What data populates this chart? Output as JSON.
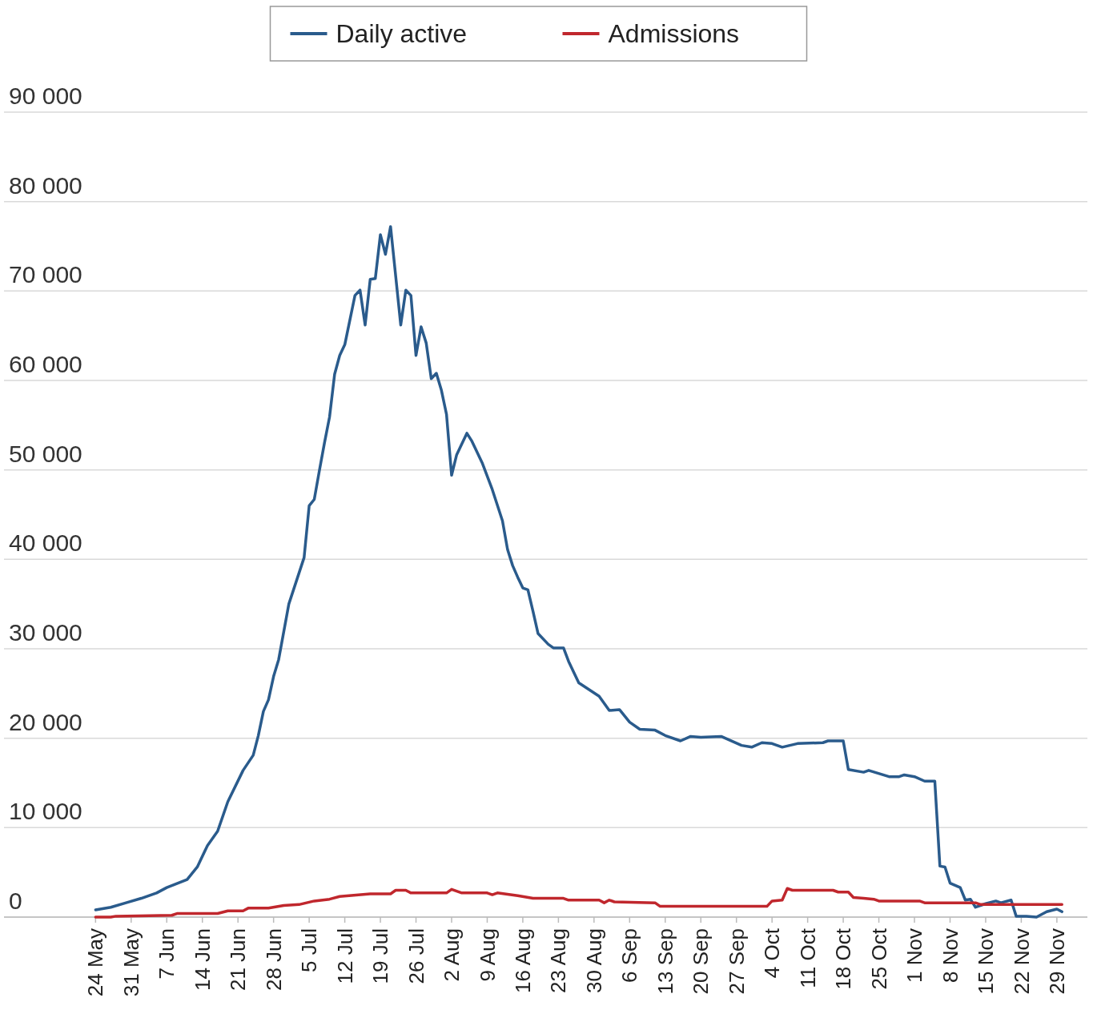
{
  "chart_data": {
    "type": "line",
    "legend": "top",
    "grid": "y",
    "line_style": "solid",
    "xlim": [
      "--05-06",
      "--12-05"
    ],
    "xticks": [
      {
        "value": "--05-24",
        "label": "24 May"
      },
      {
        "value": "--05-31",
        "label": "31 May"
      },
      {
        "value": "--06-07",
        "label": "7 Jun"
      },
      {
        "value": "--06-14",
        "label": "14 Jun"
      },
      {
        "value": "--06-21",
        "label": "21 Jun"
      },
      {
        "value": "--06-28",
        "label": "28 Jun"
      },
      {
        "value": "--07-05",
        "label": "5 Jul"
      },
      {
        "value": "--07-12",
        "label": "12 Jul"
      },
      {
        "value": "--07-19",
        "label": "19 Jul"
      },
      {
        "value": "--07-26",
        "label": "26 Jul"
      },
      {
        "value": "--08-02",
        "label": "2 Aug"
      },
      {
        "value": "--08-09",
        "label": "9 Aug"
      },
      {
        "value": "--08-16",
        "label": "16 Aug"
      },
      {
        "value": "--08-23",
        "label": "23 Aug"
      },
      {
        "value": "--08-30",
        "label": "30 Aug"
      },
      {
        "value": "--09-06",
        "label": "6 Sep"
      },
      {
        "value": "--09-13",
        "label": "13 Sep"
      },
      {
        "value": "--09-20",
        "label": "20 Sep"
      },
      {
        "value": "--09-27",
        "label": "27 Sep"
      },
      {
        "value": "--10-04",
        "label": "4 Oct"
      },
      {
        "value": "--10-11",
        "label": "11 Oct"
      },
      {
        "value": "--10-18",
        "label": "18 Oct"
      },
      {
        "value": "--10-25",
        "label": "25 Oct"
      },
      {
        "value": "--11-01",
        "label": "1 Nov"
      },
      {
        "value": "--11-08",
        "label": "8 Nov"
      },
      {
        "value": "--11-15",
        "label": "15 Nov"
      },
      {
        "value": "--11-22",
        "label": "22 Nov"
      },
      {
        "value": "--11-29",
        "label": "29 Nov"
      }
    ],
    "ylim": [
      0,
      90000
    ],
    "yticks": [
      0,
      {
        "value": 10000,
        "label": "10 000"
      },
      {
        "value": 20000,
        "label": "20 000"
      },
      {
        "value": 30000,
        "label": "30 000"
      },
      {
        "value": 40000,
        "label": "40 000"
      },
      {
        "value": 50000,
        "label": "50 000"
      },
      {
        "value": 60000,
        "label": "60 000"
      },
      {
        "value": 70000,
        "label": "70 000"
      },
      {
        "value": 80000,
        "label": "80 000"
      },
      {
        "value": 90000,
        "label": "90 000"
      }
    ],
    "series": [
      {
        "name": "Daily active",
        "color": "#2a5b8c",
        "x": [
          "--05-24",
          "--05-27",
          "--05-30",
          "--06-02",
          "--06-05",
          "--06-07",
          "--06-11",
          "--06-13",
          "--06-15",
          "--06-17",
          "--06-19",
          "--06-22",
          "--06-24",
          "--06-25",
          "--06-26",
          "--06-27",
          "--06-28",
          "--06-29",
          "--07-01",
          "--07-04",
          "--07-05",
          "--07-06",
          "--07-07",
          "--07-08",
          "--07-09",
          "--07-10",
          "--07-11",
          "--07-12",
          "--07-14",
          "--07-15",
          "--07-16",
          "--07-17",
          "--07-18",
          "--07-19",
          "--07-20",
          "--07-21",
          "--07-23",
          "--07-24",
          "--07-25",
          "--07-26",
          "--07-27",
          "--07-28",
          "--07-29",
          "--07-30",
          "--07-31",
          "--08-01",
          "--08-02",
          "--08-03",
          "--08-05",
          "--08-06",
          "--08-08",
          "--08-10",
          "--08-12",
          "--08-13",
          "--08-14",
          "--08-15",
          "--08-16",
          "--08-17",
          "--08-18",
          "--08-19",
          "--08-21",
          "--08-22",
          "--08-24",
          "--08-25",
          "--08-27",
          "--08-31",
          "--09-02",
          "--09-04",
          "--09-06",
          "--09-08",
          "--09-11",
          "--09-13",
          "--09-16",
          "--09-18",
          "--09-20",
          "--09-24",
          "--09-28",
          "--09-30",
          "--10-02",
          "--10-04",
          "--10-06",
          "--10-09",
          "--10-14",
          "--10-15",
          "--10-18",
          "--10-19",
          "--10-22",
          "--10-23",
          "--10-27",
          "--10-29",
          "--10-30",
          "--11-01",
          "--11-03",
          "--11-05",
          "--11-06",
          "--11-07",
          "--11-08",
          "--11-10",
          "--11-11",
          "--11-12",
          "--11-13",
          "--11-15",
          "--11-17",
          "--11-18",
          "--11-20",
          "--11-21",
          "--11-23",
          "--11-25",
          "--11-27",
          "--11-29",
          "--11-30"
        ],
        "values": [
          800,
          1100,
          1600,
          2100,
          2700,
          3300,
          4200,
          5600,
          8000,
          9600,
          12900,
          16400,
          18100,
          20300,
          23000,
          24300,
          26900,
          28800,
          35000,
          40200,
          46000,
          46700,
          49900,
          53000,
          55900,
          60700,
          62800,
          64000,
          69500,
          70100,
          66200,
          71300,
          71400,
          76300,
          74100,
          77200,
          66200,
          70100,
          69500,
          62800,
          66000,
          64200,
          60200,
          60800,
          58900,
          56200,
          49400,
          51700,
          54100,
          53200,
          50800,
          47800,
          44300,
          41100,
          39300,
          38000,
          36800,
          36600,
          34200,
          31700,
          30500,
          30100,
          30100,
          28600,
          26200,
          24700,
          23100,
          23200,
          21800,
          21000,
          20900,
          20300,
          19700,
          20200,
          20100,
          20200,
          19200,
          19000,
          19500,
          19400,
          19000,
          19400,
          19500,
          19700,
          19700,
          16500,
          16200,
          16400,
          15700,
          15700,
          15900,
          15700,
          15200,
          15200,
          5700,
          5600,
          3800,
          3300,
          1900,
          2000,
          1100,
          1500,
          1800,
          1600,
          1900,
          100,
          100,
          0,
          600,
          900,
          600
        ]
      },
      {
        "name": "Admissions",
        "color": "#c0272d",
        "x": [
          "--05-24",
          "--05-27",
          "--05-28",
          "--06-08",
          "--06-09",
          "--06-17",
          "--06-19",
          "--06-22",
          "--06-23",
          "--06-27",
          "--06-30",
          "--07-03",
          "--07-06",
          "--07-09",
          "--07-11",
          "--07-17",
          "--07-21",
          "--07-22",
          "--07-24",
          "--07-25",
          "--08-01",
          "--08-02",
          "--08-04",
          "--08-09",
          "--08-10",
          "--08-11",
          "--08-15",
          "--08-18",
          "--08-24",
          "--08-25",
          "--08-31",
          "--09-01",
          "--09-02",
          "--09-03",
          "--09-11",
          "--09-12",
          "--10-03",
          "--10-04",
          "--10-06",
          "--10-07",
          "--10-08",
          "--10-16",
          "--10-17",
          "--10-19",
          "--10-20",
          "--10-22",
          "--10-24",
          "--10-25",
          "--11-02",
          "--11-03",
          "--11-13",
          "--11-14",
          "--11-30"
        ],
        "values": [
          0,
          0,
          100,
          200,
          400,
          400,
          700,
          700,
          1000,
          1000,
          1300,
          1400,
          1800,
          2000,
          2300,
          2600,
          2600,
          3000,
          3000,
          2700,
          2700,
          3100,
          2700,
          2700,
          2500,
          2700,
          2400,
          2100,
          2100,
          1900,
          1900,
          1600,
          1900,
          1700,
          1600,
          1200,
          1200,
          1800,
          1900,
          3200,
          3000,
          3000,
          2800,
          2800,
          2200,
          2100,
          2000,
          1800,
          1800,
          1600,
          1600,
          1400,
          1400
        ]
      }
    ]
  }
}
